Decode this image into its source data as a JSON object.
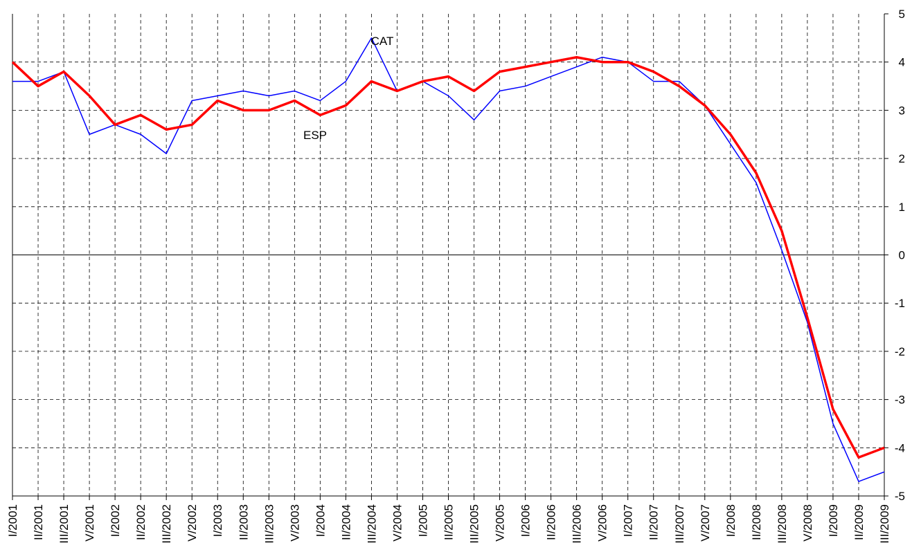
{
  "chart_data": {
    "type": "line",
    "categories": [
      "I/2001",
      "II/2001",
      "III/2001",
      "V/2001",
      "I/2002",
      "II/2002",
      "III/2002",
      "V/2002",
      "I/2003",
      "II/2003",
      "III/2003",
      "V/2003",
      "I/2004",
      "II/2004",
      "III/2004",
      "V/2004",
      "I/2005",
      "II/2005",
      "III/2005",
      "V/2005",
      "I/2006",
      "II/2006",
      "III/2006",
      "V/2006",
      "I/2007",
      "II/2007",
      "III/2007",
      "V/2007",
      "I/2008",
      "II/2008",
      "III/2008",
      "V/2008",
      "I/2009",
      "II/2009",
      "III/2009"
    ],
    "series": [
      {
        "name": "CAT",
        "color": "#0000ff",
        "values": [
          3.6,
          3.6,
          3.8,
          2.5,
          2.7,
          2.5,
          2.1,
          3.2,
          3.3,
          3.4,
          3.3,
          3.4,
          3.2,
          3.6,
          4.5,
          3.4,
          3.6,
          3.3,
          2.8,
          3.4,
          3.5,
          3.7,
          3.9,
          4.1,
          4.0,
          3.6,
          3.6,
          3.1,
          2.3,
          1.5,
          0.1,
          -1.4,
          -3.5,
          -4.7,
          -4.5
        ]
      },
      {
        "name": "ESP",
        "color": "#ff0000",
        "values": [
          4.0,
          3.5,
          3.8,
          3.3,
          2.7,
          2.9,
          2.6,
          2.7,
          3.2,
          3.0,
          3.0,
          3.2,
          2.9,
          3.1,
          3.6,
          3.4,
          3.6,
          3.7,
          3.4,
          3.8,
          3.9,
          4.0,
          4.1,
          4.0,
          4.0,
          3.8,
          3.5,
          3.1,
          2.5,
          1.7,
          0.5,
          -1.3,
          -3.2,
          -4.2,
          -4.0
        ]
      }
    ],
    "ylim": [
      -5,
      5
    ],
    "yticks": [
      5,
      4,
      3,
      2,
      1,
      0,
      -1,
      -2,
      -3,
      -4,
      -5
    ],
    "grid": true
  }
}
